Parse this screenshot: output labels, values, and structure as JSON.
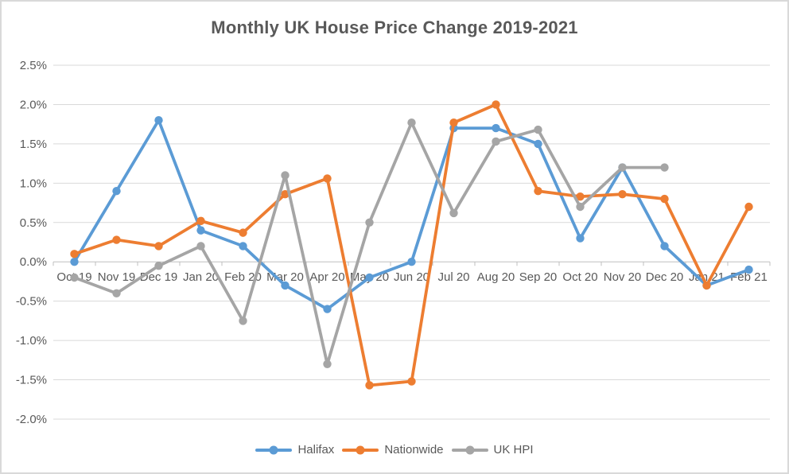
{
  "chart_data": {
    "type": "line",
    "title": "Monthly UK House Price Change 2019-2021",
    "categories": [
      "Oct 19",
      "Nov 19",
      "Dec 19",
      "Jan 20",
      "Feb 20",
      "Mar 20",
      "Apr 20",
      "May 20",
      "Jun 20",
      "Jul 20",
      "Aug 20",
      "Sep 20",
      "Oct 20",
      "Nov 20",
      "Dec 20",
      "Jan 21",
      "Feb 21"
    ],
    "series": [
      {
        "name": "Halifax",
        "color": "#5B9BD5",
        "values": [
          0.0,
          0.9,
          1.8,
          0.4,
          0.2,
          -0.3,
          -0.6,
          -0.2,
          0.0,
          1.7,
          1.7,
          1.5,
          0.3,
          1.2,
          0.2,
          -0.3,
          -0.1
        ]
      },
      {
        "name": "Nationwide",
        "color": "#ED7D31",
        "values": [
          0.1,
          0.28,
          0.2,
          0.52,
          0.37,
          0.86,
          1.06,
          -1.57,
          -1.52,
          1.77,
          2.0,
          0.9,
          0.83,
          0.86,
          0.8,
          -0.3,
          0.7
        ]
      },
      {
        "name": "UK HPI",
        "color": "#A5A5A5",
        "values": [
          -0.2,
          -0.4,
          -0.05,
          0.2,
          -0.75,
          1.1,
          -1.3,
          0.5,
          1.77,
          0.62,
          1.53,
          1.68,
          0.7,
          1.2,
          1.2,
          null,
          null
        ]
      }
    ],
    "xlabel": "",
    "ylabel": "",
    "ylim": [
      -2.0,
      2.5
    ],
    "y_tick_values": [
      2.5,
      2.0,
      1.5,
      1.0,
      0.5,
      0.0,
      -0.5,
      -1.0,
      -1.5,
      -2.0
    ],
    "y_tick_labels": [
      "2.5%",
      "2.0%",
      "1.5%",
      "1.0%",
      "0.5%",
      "0.0%",
      "-0.5%",
      "-1.0%",
      "-1.5%",
      "-2.0%"
    ],
    "grid": true,
    "legend_position": "bottom",
    "marker": "circle"
  },
  "style": {
    "text_color": "#595959",
    "gridline_color": "#D9D9D9",
    "axis_color": "#BFBFBF",
    "border_color": "#D9D9D9",
    "background": "#FFFFFF"
  }
}
